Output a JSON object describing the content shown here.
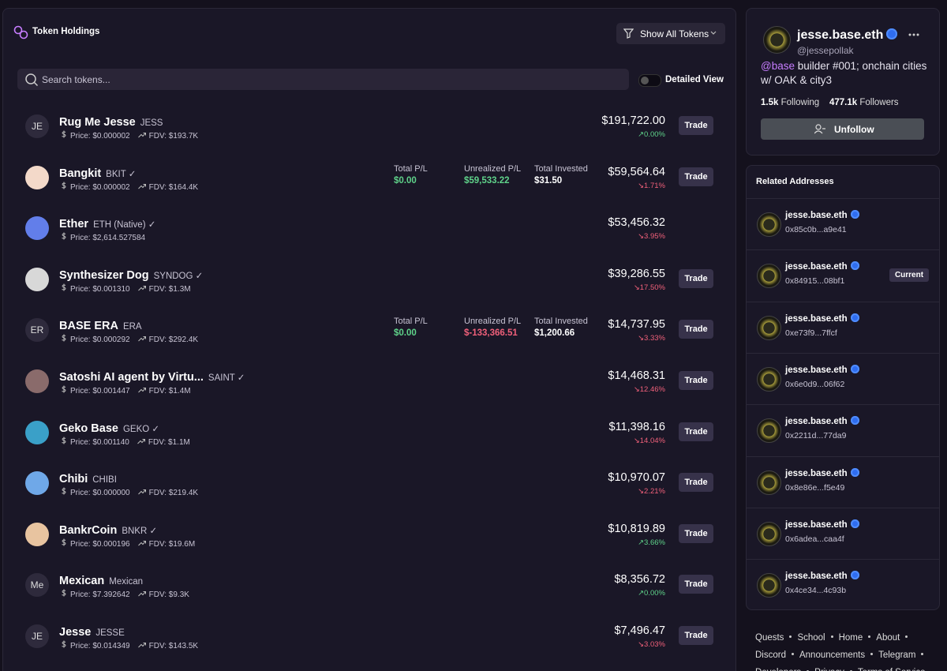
{
  "header": {
    "title": "Token Holdings",
    "filter_button": "Show All Tokens",
    "search_placeholder": "Search tokens...",
    "detailed_view": "Detailed View"
  },
  "tokens": [
    {
      "name": "Rug Me Jesse",
      "symbol": "JESS",
      "avatar": "JE",
      "price": "Price: $0.000002",
      "fdv": "FDV: $193.7K",
      "value": "$191,722.00",
      "change": "↗0.00%",
      "trend": "up",
      "action": "Trade"
    },
    {
      "name": "Bangkit",
      "symbol": "BKIT ✓",
      "icon_color": "#f3d9c9",
      "price": "Price: $0.000002",
      "fdv": "FDV: $164.4K",
      "stats": [
        {
          "label": "Total P/L",
          "value": "$0.00",
          "color": "#5fd38a"
        },
        {
          "label": "Unrealized P/L",
          "value": "$59,533.22",
          "color": "#5fd38a"
        },
        {
          "label": "Total Invested",
          "value": "$31.50",
          "color": "#ffffff"
        }
      ],
      "value": "$59,564.64",
      "change": "↘1.71%",
      "trend": "down",
      "action": "Trade"
    },
    {
      "name": "Ether",
      "symbol": "ETH (Native) ✓",
      "icon_color": "#627eea",
      "price": "Price: $2,614.527584",
      "value": "$53,456.32",
      "change": "↘3.95%",
      "trend": "down"
    },
    {
      "name": "Synthesizer Dog",
      "symbol": "SYNDOG ✓",
      "icon_color": "#d8d8d8",
      "price": "Price: $0.001310",
      "fdv": "FDV: $1.3M",
      "value": "$39,286.55",
      "change": "↘17.50%",
      "trend": "down",
      "action": "Trade"
    },
    {
      "name": "BASE ERA",
      "symbol": "ERA",
      "avatar": "ER",
      "price": "Price: $0.000292",
      "fdv": "FDV: $292.4K",
      "stats": [
        {
          "label": "Total P/L",
          "value": "$0.00",
          "color": "#5fd38a"
        },
        {
          "label": "Unrealized P/L",
          "value": "$-133,366.51",
          "color": "#f0607a"
        },
        {
          "label": "Total Invested",
          "value": "$1,200.66",
          "color": "#ffffff"
        }
      ],
      "value": "$14,737.95",
      "change": "↘3.33%",
      "trend": "down",
      "action": "Trade"
    },
    {
      "name": "Satoshi AI agent by Virtu...",
      "symbol": "SAINT ✓",
      "icon_color": "#8a6b6b",
      "price": "Price: $0.001447",
      "fdv": "FDV: $1.4M",
      "value": "$14,468.31",
      "change": "↘12.46%",
      "trend": "down",
      "action": "Trade"
    },
    {
      "name": "Geko Base",
      "symbol": "GEKO ✓",
      "icon_color": "#3aa0c8",
      "price": "Price: $0.001140",
      "fdv": "FDV: $1.1M",
      "value": "$11,398.16",
      "change": "↘14.04%",
      "trend": "down",
      "action": "Trade"
    },
    {
      "name": "Chibi",
      "symbol": "CHIBI",
      "icon_color": "#6fa8e8",
      "price": "Price: $0.000000",
      "fdv": "FDV: $219.4K",
      "value": "$10,970.07",
      "change": "↘2.21%",
      "trend": "down",
      "action": "Trade"
    },
    {
      "name": "BankrCoin",
      "symbol": "BNKR ✓",
      "icon_color": "#e8c4a0",
      "price": "Price: $0.000196",
      "fdv": "FDV: $19.6M",
      "value": "$10,819.89",
      "change": "↗3.66%",
      "trend": "up",
      "action": "Trade"
    },
    {
      "name": "Mexican",
      "symbol": "Mexican",
      "avatar": "Me",
      "price": "Price: $7.392642",
      "fdv": "FDV: $9.3K",
      "value": "$8,356.72",
      "change": "↗0.00%",
      "trend": "up",
      "action": "Trade"
    },
    {
      "name": "Jesse",
      "symbol": "JESSE",
      "avatar": "JE",
      "price": "Price: $0.014349",
      "fdv": "FDV: $143.5K",
      "value": "$7,496.47",
      "change": "↘3.03%",
      "trend": "down",
      "action": "Trade"
    }
  ],
  "profile": {
    "name": "jesse.base.eth",
    "handle": "@jessepollak",
    "bio_mention": "@base",
    "bio": " builder #001; onchain cities w/ OAK & city3",
    "following_count": "1.5k",
    "following_label": "Following",
    "followers_count": "477.1k",
    "followers_label": "Followers",
    "button": "Unfollow"
  },
  "related": {
    "title": "Related Addresses",
    "items": [
      {
        "name": "jesse.base.eth",
        "address": "0x85c0b...a9e41"
      },
      {
        "name": "jesse.base.eth",
        "address": "0x84915...08bf1",
        "badge": "Current"
      },
      {
        "name": "jesse.base.eth",
        "address": "0xe73f9...7ffcf"
      },
      {
        "name": "jesse.base.eth",
        "address": "0x6e0d9...06f62"
      },
      {
        "name": "jesse.base.eth",
        "address": "0x2211d...77da9"
      },
      {
        "name": "jesse.base.eth",
        "address": "0x8e86e...f5e49"
      },
      {
        "name": "jesse.base.eth",
        "address": "0x6adea...caa4f"
      },
      {
        "name": "jesse.base.eth",
        "address": "0x4ce34...4c93b"
      }
    ]
  },
  "footer": {
    "links": [
      "Quests",
      "School",
      "Home",
      "About",
      "Discord",
      "Announcements",
      "Telegram",
      "Developers",
      "Privacy",
      "Terms of Service"
    ]
  }
}
